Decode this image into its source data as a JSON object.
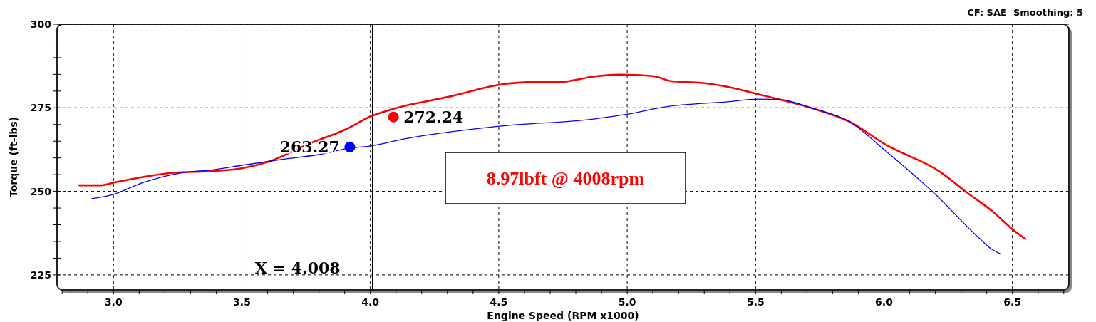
{
  "chart_data": {
    "type": "line",
    "xlabel": "Engine Speed (RPM x1000)",
    "ylabel": "Torque (ft-lbs)",
    "xlim": [
      2.78,
      6.72
    ],
    "ylim": [
      220.5,
      300
    ],
    "xticks": [
      {
        "value": 2.8,
        "label": null
      },
      {
        "value": 2.9,
        "label": null
      },
      {
        "value": 3.0,
        "label": "3.0"
      },
      {
        "value": 3.1,
        "label": null
      },
      {
        "value": 3.2,
        "label": null
      },
      {
        "value": 3.3,
        "label": null
      },
      {
        "value": 3.4,
        "label": null
      },
      {
        "value": 3.5,
        "label": "3.5"
      },
      {
        "value": 3.6,
        "label": null
      },
      {
        "value": 3.7,
        "label": null
      },
      {
        "value": 3.8,
        "label": null
      },
      {
        "value": 3.9,
        "label": null
      },
      {
        "value": 4.0,
        "label": "4.0"
      },
      {
        "value": 4.1,
        "label": null
      },
      {
        "value": 4.2,
        "label": null
      },
      {
        "value": 4.3,
        "label": null
      },
      {
        "value": 4.4,
        "label": null
      },
      {
        "value": 4.5,
        "label": "4.5"
      },
      {
        "value": 4.6,
        "label": null
      },
      {
        "value": 4.7,
        "label": null
      },
      {
        "value": 4.8,
        "label": null
      },
      {
        "value": 4.9,
        "label": null
      },
      {
        "value": 5.0,
        "label": "5.0"
      },
      {
        "value": 5.1,
        "label": null
      },
      {
        "value": 5.2,
        "label": null
      },
      {
        "value": 5.3,
        "label": null
      },
      {
        "value": 5.4,
        "label": null
      },
      {
        "value": 5.5,
        "label": "5.5"
      },
      {
        "value": 5.6,
        "label": null
      },
      {
        "value": 5.7,
        "label": null
      },
      {
        "value": 5.8,
        "label": null
      },
      {
        "value": 5.9,
        "label": null
      },
      {
        "value": 6.0,
        "label": "6.0"
      },
      {
        "value": 6.1,
        "label": null
      },
      {
        "value": 6.2,
        "label": null
      },
      {
        "value": 6.3,
        "label": null
      },
      {
        "value": 6.4,
        "label": null
      },
      {
        "value": 6.5,
        "label": "6.5"
      },
      {
        "value": 6.6,
        "label": null
      },
      {
        "value": 6.7,
        "label": null
      }
    ],
    "yticks": [
      225,
      {
        "value": 230,
        "label": null
      },
      {
        "value": 235,
        "label": null
      },
      {
        "value": 240,
        "label": null
      },
      {
        "value": 245,
        "label": null
      },
      250,
      {
        "value": 255,
        "label": null
      },
      {
        "value": 260,
        "label": null
      },
      {
        "value": 265,
        "label": null
      },
      {
        "value": 270,
        "label": null
      },
      275,
      {
        "value": 280,
        "label": null
      },
      {
        "value": 285,
        "label": null
      },
      {
        "value": 290,
        "label": null
      },
      {
        "value": 295,
        "label": null
      },
      300
    ],
    "grid": true,
    "marker": "none",
    "series": [
      {
        "color": "#ff0000",
        "x": [
          2.864,
          2.95,
          3.0,
          3.225,
          3.392,
          3.5,
          3.605,
          3.764,
          3.903,
          4.003,
          4.086,
          4.317,
          4.503,
          4.642,
          4.733,
          4.875,
          4.967,
          5.039,
          5.114,
          5.169,
          5.297,
          5.389,
          5.508,
          5.719,
          5.864,
          6.006,
          6.217,
          6.322,
          6.419,
          6.514,
          6.553
        ],
        "values": [
          251.8,
          251.8,
          252.6,
          255.5,
          256.1,
          256.9,
          258.9,
          264.3,
          268.5,
          272.5,
          274.6,
          278.5,
          281.9,
          282.7,
          282.7,
          284.4,
          284.9,
          284.8,
          284.3,
          283.0,
          282.4,
          281.3,
          279.1,
          274.9,
          270.9,
          264.0,
          255.9,
          249.7,
          244.2,
          237.8,
          235.6
        ]
      },
      {
        "color": "#0000ff",
        "x": [
          2.914,
          3.0,
          3.114,
          3.261,
          3.392,
          3.5,
          3.669,
          3.808,
          3.914,
          4.003,
          4.133,
          4.503,
          4.875,
          5.003,
          5.15,
          5.389,
          5.508,
          5.594,
          5.719,
          5.864,
          6.006,
          6.189,
          6.369,
          6.419,
          6.456
        ],
        "values": [
          247.8,
          249.1,
          252.6,
          255.5,
          256.5,
          257.8,
          259.7,
          261.1,
          262.9,
          263.6,
          265.7,
          269.5,
          271.7,
          273.1,
          275.3,
          276.8,
          277.6,
          277.5,
          274.9,
          270.9,
          262.1,
          249.9,
          236.1,
          232.7,
          231.2
        ]
      },
      {
        "type": "scatter",
        "marker": "circle",
        "color": "#ff0000",
        "x": [
          4.09
        ],
        "values": [
          272.24
        ],
        "value_labels": [
          "272.24"
        ]
      },
      {
        "type": "scatter",
        "marker": "circle",
        "color": "#0000ff",
        "x": [
          3.92
        ],
        "values": [
          263.27
        ],
        "value_labels": [
          "263.27"
        ]
      }
    ],
    "ref_lines": [
      {
        "axis": "x",
        "value": 4.008,
        "label": "X = 4.008",
        "color": "#000000"
      }
    ],
    "annotations": [
      "CF: SAE  Smoothing: 5",
      "8.97lbft @ 4008rpm"
    ]
  }
}
